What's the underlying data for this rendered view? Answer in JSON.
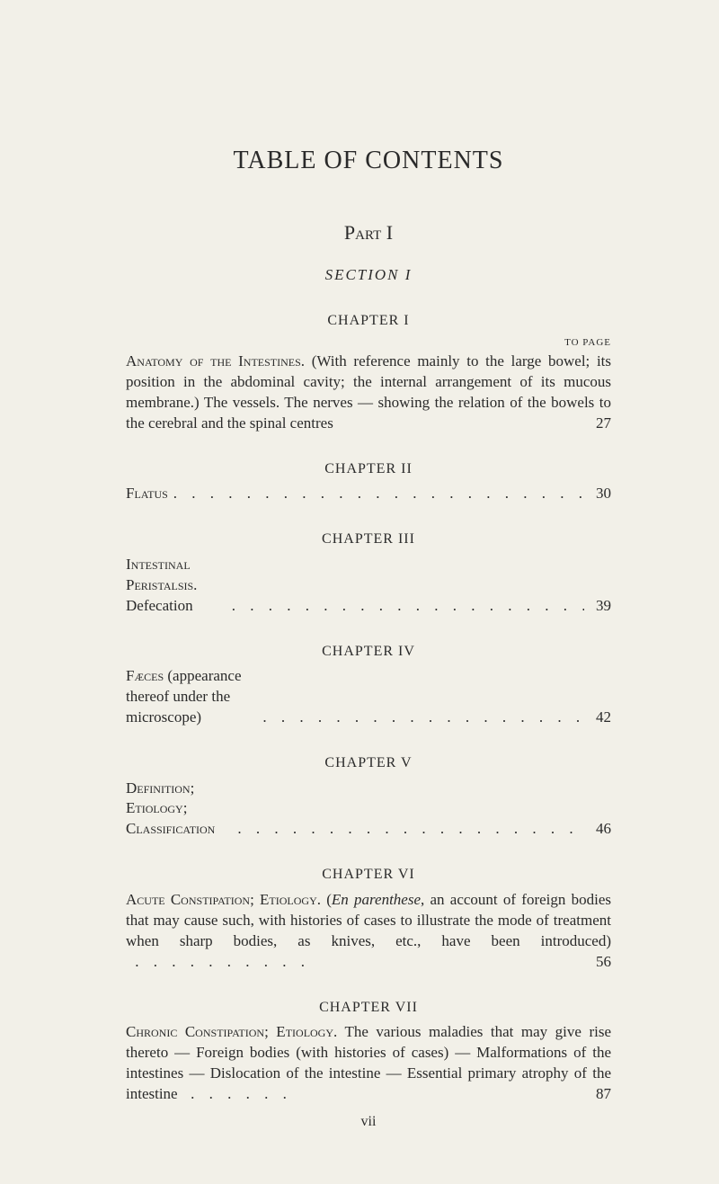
{
  "title": "TABLE OF CONTENTS",
  "part": "Part I",
  "section": "SECTION I",
  "to_page_label": "TO PAGE",
  "chapter1": {
    "heading": "CHAPTER I",
    "lead": "Anatomy of the Intestines.",
    "body": "(With reference mainly to the large bowel; its position in the abdominal cavity; the internal arrangement of its mucous membrane.) The vessels. The nerves — showing the relation of the bowels to the cerebral and the spinal centres",
    "page": "27"
  },
  "chapter2": {
    "heading": "CHAPTER II",
    "lead": "Flatus",
    "page": "30"
  },
  "chapter3": {
    "heading": "CHAPTER III",
    "lead": "Intestinal Peristalsis.",
    "body": "Defecation",
    "page": "39"
  },
  "chapter4": {
    "heading": "CHAPTER IV",
    "lead": "Fæces",
    "body": "(appearance thereof under the microscope)",
    "page": "42"
  },
  "chapter5": {
    "heading": "CHAPTER V",
    "lead": "Definition; Etiology; Classification",
    "page": "46"
  },
  "chapter6": {
    "heading": "CHAPTER VI",
    "lead": "Acute Constipation; Etiology.",
    "body_pre": "(",
    "body_italic": "En parenthese",
    "body_post": ", an account of foreign bodies that may cause such, with histories of cases to illustrate the mode of treatment when sharp bodies, as knives, etc., have been introduced)",
    "page": "56"
  },
  "chapter7": {
    "heading": "CHAPTER VII",
    "lead": "Chronic Constipation; Etiology.",
    "body": "The various maladies that may give rise thereto — Foreign bodies (with histories of cases) — Malformations of the intestines — Dislocation of the intestine — Essential primary atrophy of the intestine",
    "page": "87"
  },
  "footer": "vii",
  "dots": ". . . . . . . . . . . . . . . . . . . . . . . . . . . . . . . . . . . . . . . ."
}
